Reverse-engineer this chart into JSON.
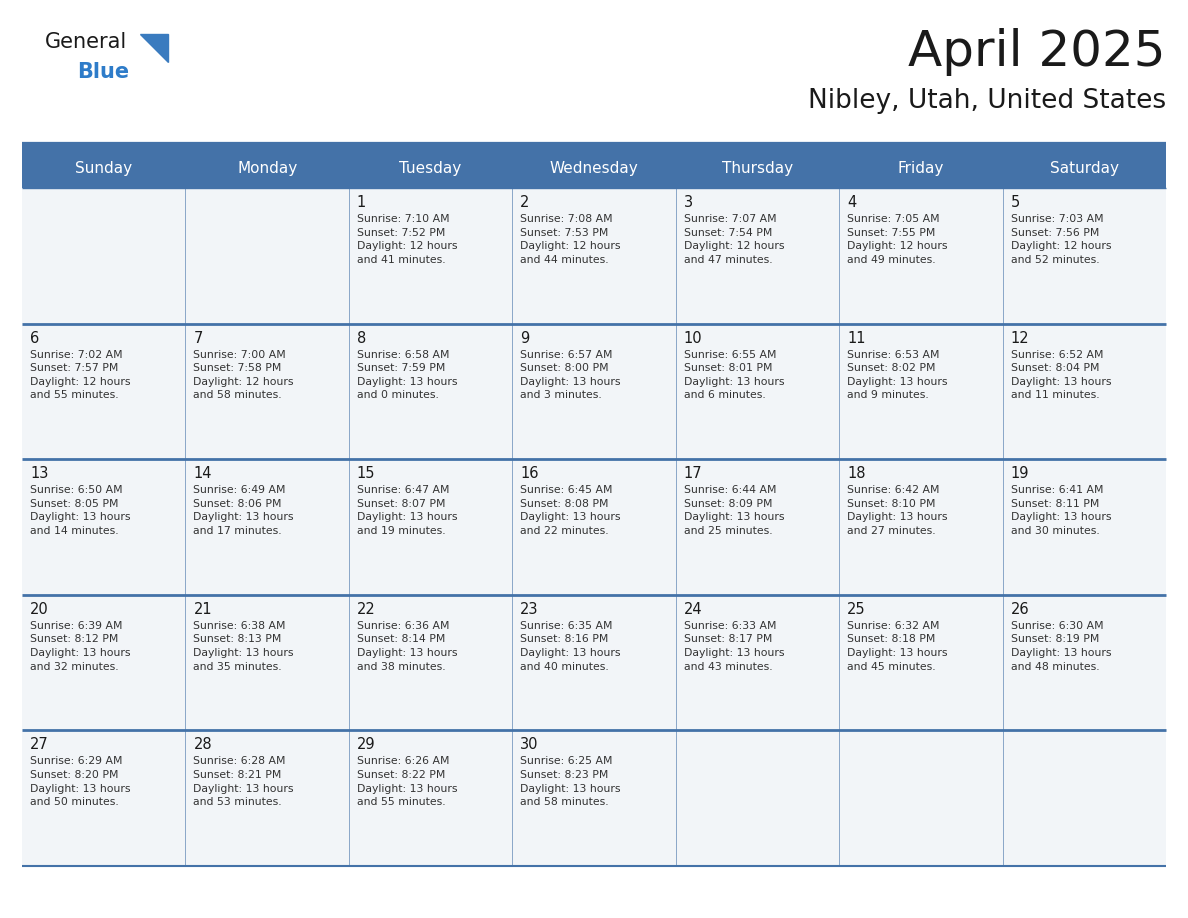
{
  "title": "April 2025",
  "subtitle": "Nibley, Utah, United States",
  "header_bg": "#4472a8",
  "header_text": "#ffffff",
  "cell_bg": "#f2f5f8",
  "border_color": "#4472a8",
  "border_color_dark": "#35608f",
  "day_names": [
    "Sunday",
    "Monday",
    "Tuesday",
    "Wednesday",
    "Thursday",
    "Friday",
    "Saturday"
  ],
  "title_color": "#1a1a1a",
  "subtitle_color": "#1a1a1a",
  "cell_text_color": "#333333",
  "day_number_color": "#1a1a1a",
  "logo_general_color": "#1a1a1a",
  "logo_blue_color": "#2e7cc9",
  "logo_triangle_color": "#3a7bbf",
  "weeks": [
    [
      {
        "day": "",
        "info": ""
      },
      {
        "day": "",
        "info": ""
      },
      {
        "day": "1",
        "info": "Sunrise: 7:10 AM\nSunset: 7:52 PM\nDaylight: 12 hours\nand 41 minutes."
      },
      {
        "day": "2",
        "info": "Sunrise: 7:08 AM\nSunset: 7:53 PM\nDaylight: 12 hours\nand 44 minutes."
      },
      {
        "day": "3",
        "info": "Sunrise: 7:07 AM\nSunset: 7:54 PM\nDaylight: 12 hours\nand 47 minutes."
      },
      {
        "day": "4",
        "info": "Sunrise: 7:05 AM\nSunset: 7:55 PM\nDaylight: 12 hours\nand 49 minutes."
      },
      {
        "day": "5",
        "info": "Sunrise: 7:03 AM\nSunset: 7:56 PM\nDaylight: 12 hours\nand 52 minutes."
      }
    ],
    [
      {
        "day": "6",
        "info": "Sunrise: 7:02 AM\nSunset: 7:57 PM\nDaylight: 12 hours\nand 55 minutes."
      },
      {
        "day": "7",
        "info": "Sunrise: 7:00 AM\nSunset: 7:58 PM\nDaylight: 12 hours\nand 58 minutes."
      },
      {
        "day": "8",
        "info": "Sunrise: 6:58 AM\nSunset: 7:59 PM\nDaylight: 13 hours\nand 0 minutes."
      },
      {
        "day": "9",
        "info": "Sunrise: 6:57 AM\nSunset: 8:00 PM\nDaylight: 13 hours\nand 3 minutes."
      },
      {
        "day": "10",
        "info": "Sunrise: 6:55 AM\nSunset: 8:01 PM\nDaylight: 13 hours\nand 6 minutes."
      },
      {
        "day": "11",
        "info": "Sunrise: 6:53 AM\nSunset: 8:02 PM\nDaylight: 13 hours\nand 9 minutes."
      },
      {
        "day": "12",
        "info": "Sunrise: 6:52 AM\nSunset: 8:04 PM\nDaylight: 13 hours\nand 11 minutes."
      }
    ],
    [
      {
        "day": "13",
        "info": "Sunrise: 6:50 AM\nSunset: 8:05 PM\nDaylight: 13 hours\nand 14 minutes."
      },
      {
        "day": "14",
        "info": "Sunrise: 6:49 AM\nSunset: 8:06 PM\nDaylight: 13 hours\nand 17 minutes."
      },
      {
        "day": "15",
        "info": "Sunrise: 6:47 AM\nSunset: 8:07 PM\nDaylight: 13 hours\nand 19 minutes."
      },
      {
        "day": "16",
        "info": "Sunrise: 6:45 AM\nSunset: 8:08 PM\nDaylight: 13 hours\nand 22 minutes."
      },
      {
        "day": "17",
        "info": "Sunrise: 6:44 AM\nSunset: 8:09 PM\nDaylight: 13 hours\nand 25 minutes."
      },
      {
        "day": "18",
        "info": "Sunrise: 6:42 AM\nSunset: 8:10 PM\nDaylight: 13 hours\nand 27 minutes."
      },
      {
        "day": "19",
        "info": "Sunrise: 6:41 AM\nSunset: 8:11 PM\nDaylight: 13 hours\nand 30 minutes."
      }
    ],
    [
      {
        "day": "20",
        "info": "Sunrise: 6:39 AM\nSunset: 8:12 PM\nDaylight: 13 hours\nand 32 minutes."
      },
      {
        "day": "21",
        "info": "Sunrise: 6:38 AM\nSunset: 8:13 PM\nDaylight: 13 hours\nand 35 minutes."
      },
      {
        "day": "22",
        "info": "Sunrise: 6:36 AM\nSunset: 8:14 PM\nDaylight: 13 hours\nand 38 minutes."
      },
      {
        "day": "23",
        "info": "Sunrise: 6:35 AM\nSunset: 8:16 PM\nDaylight: 13 hours\nand 40 minutes."
      },
      {
        "day": "24",
        "info": "Sunrise: 6:33 AM\nSunset: 8:17 PM\nDaylight: 13 hours\nand 43 minutes."
      },
      {
        "day": "25",
        "info": "Sunrise: 6:32 AM\nSunset: 8:18 PM\nDaylight: 13 hours\nand 45 minutes."
      },
      {
        "day": "26",
        "info": "Sunrise: 6:30 AM\nSunset: 8:19 PM\nDaylight: 13 hours\nand 48 minutes."
      }
    ],
    [
      {
        "day": "27",
        "info": "Sunrise: 6:29 AM\nSunset: 8:20 PM\nDaylight: 13 hours\nand 50 minutes."
      },
      {
        "day": "28",
        "info": "Sunrise: 6:28 AM\nSunset: 8:21 PM\nDaylight: 13 hours\nand 53 minutes."
      },
      {
        "day": "29",
        "info": "Sunrise: 6:26 AM\nSunset: 8:22 PM\nDaylight: 13 hours\nand 55 minutes."
      },
      {
        "day": "30",
        "info": "Sunrise: 6:25 AM\nSunset: 8:23 PM\nDaylight: 13 hours\nand 58 minutes."
      },
      {
        "day": "",
        "info": ""
      },
      {
        "day": "",
        "info": ""
      },
      {
        "day": "",
        "info": ""
      }
    ]
  ]
}
